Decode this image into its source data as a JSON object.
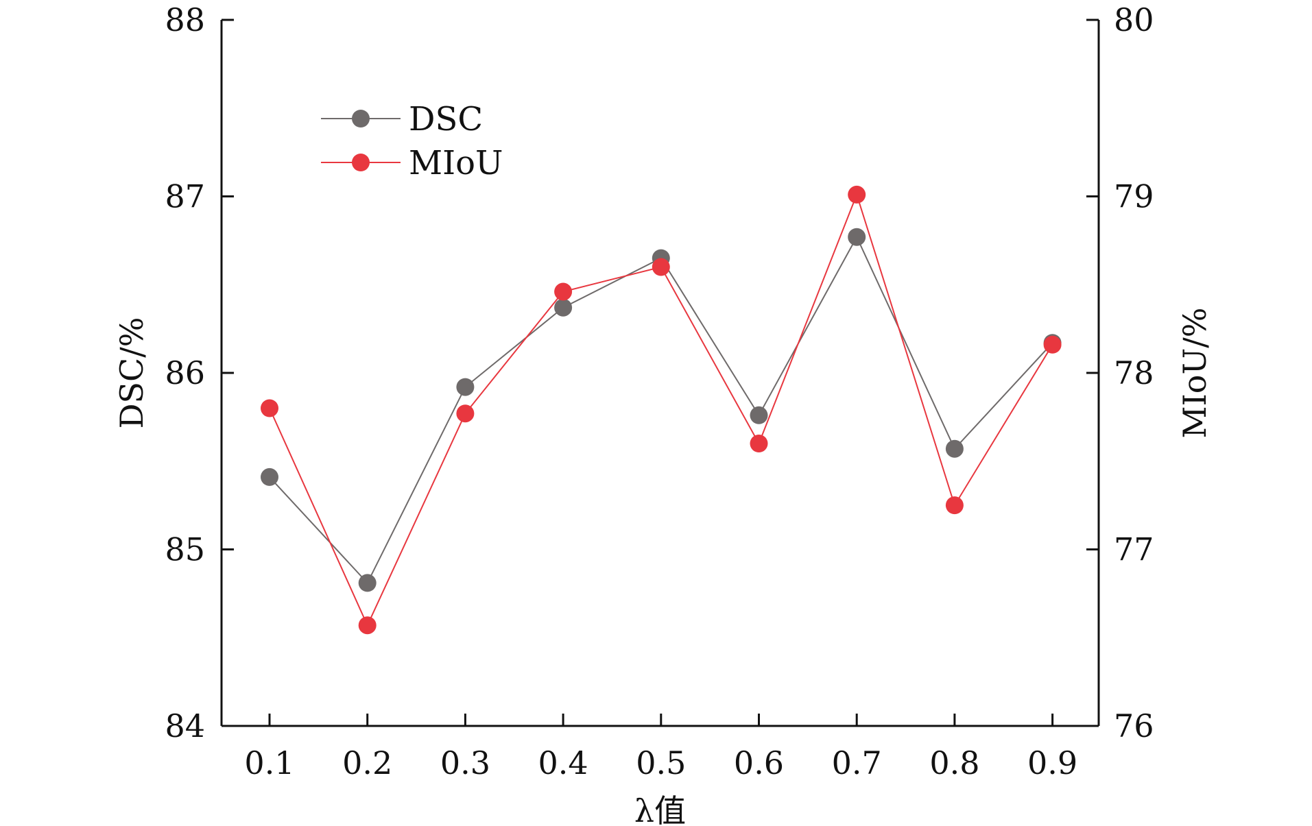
{
  "chart_data": {
    "type": "line",
    "xlabel": "λ值",
    "ylabel_left": "DSC/%",
    "ylabel_right": "MIoU/%",
    "x": [
      0.1,
      0.2,
      0.3,
      0.4,
      0.5,
      0.6,
      0.7,
      0.8,
      0.9
    ],
    "x_tick_labels": [
      "0.1",
      "0.2",
      "0.3",
      "0.4",
      "0.5",
      "0.6",
      "0.7",
      "0.8",
      "0.9"
    ],
    "ylim_left": [
      84,
      88
    ],
    "ylim_right": [
      76,
      80
    ],
    "yticks_left": [
      "84",
      "85",
      "86",
      "87",
      "88"
    ],
    "yticks_right": [
      "76",
      "77",
      "78",
      "79",
      "80"
    ],
    "grid": false,
    "legend_position": "top-left",
    "series": [
      {
        "name": "DSC",
        "axis": "left",
        "color": "#6e6a6a",
        "values": [
          85.41,
          84.81,
          85.92,
          86.37,
          86.65,
          85.76,
          86.77,
          85.57,
          86.17
        ]
      },
      {
        "name": "MIoU",
        "axis": "right",
        "color": "#e8373f",
        "values": [
          77.8,
          76.57,
          77.77,
          78.46,
          78.6,
          77.6,
          79.01,
          77.25,
          78.16
        ]
      }
    ]
  }
}
